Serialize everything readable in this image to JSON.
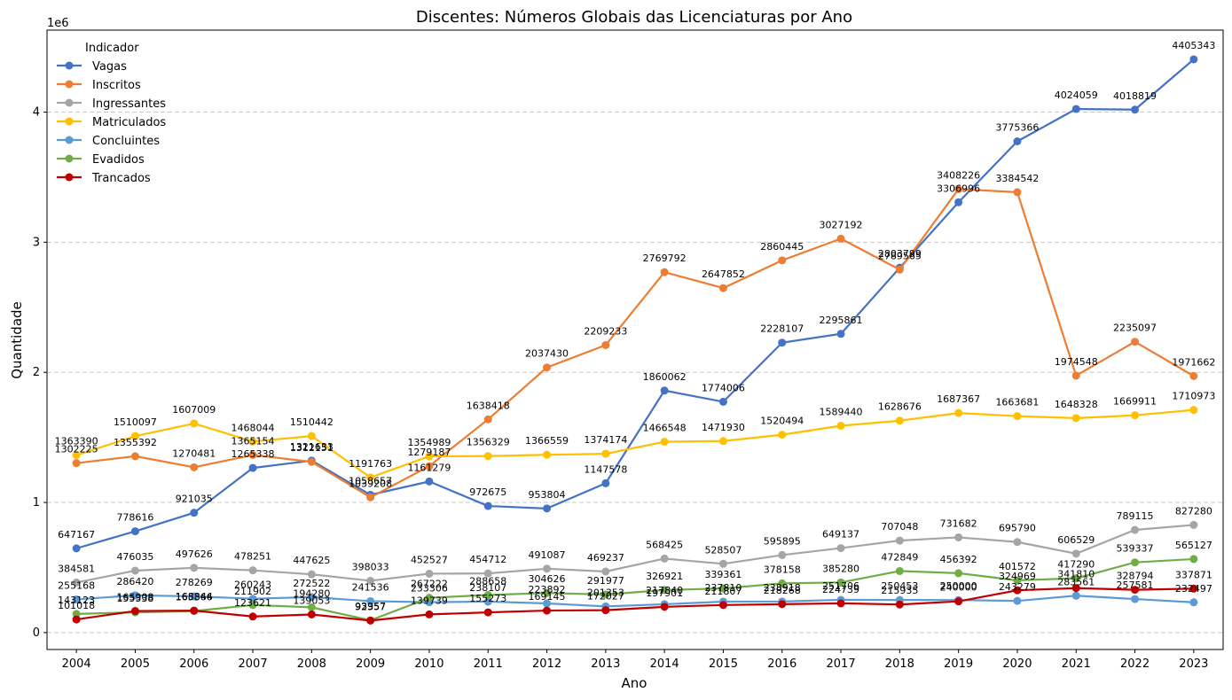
{
  "chart_data": {
    "type": "line",
    "title": "Discentes: Números Globais das Licenciaturas por Ano",
    "xlabel": "Ano",
    "ylabel": "Quantidade",
    "y_exponent_label": "1e6",
    "yticks": [
      "0",
      "1",
      "2",
      "3",
      "4"
    ],
    "ytick_values": [
      0,
      1000000,
      2000000,
      3000000,
      4000000
    ],
    "ylim": [
      -130000,
      4630000
    ],
    "grid": "y-dashed",
    "legend_title": "Indicador",
    "legend_position": "top-left",
    "x": [
      2004,
      2005,
      2006,
      2007,
      2008,
      2009,
      2010,
      2011,
      2012,
      2013,
      2014,
      2015,
      2016,
      2017,
      2018,
      2019,
      2020,
      2021,
      2022,
      2023
    ],
    "series": [
      {
        "name": "Vagas",
        "color": "#4472c4",
        "values": [
          647167,
          778616,
          921035,
          1265338,
          1321633,
          1058657,
          1161279,
          972675,
          953804,
          1147578,
          1860062,
          1774006,
          2228107,
          2295861,
          2803799,
          3306996,
          3775366,
          4024059,
          4018819,
          4405343
        ]
      },
      {
        "name": "Inscritos",
        "color": "#ed7d31",
        "values": [
          1302225,
          1355392,
          1270481,
          1365154,
          1312151,
          1039208,
          1279187,
          1638418,
          2037430,
          2209233,
          2769792,
          2647852,
          2860445,
          3027192,
          2789565,
          3408226,
          3384542,
          1974548,
          2235097,
          1971662
        ]
      },
      {
        "name": "Ingressantes",
        "color": "#a5a5a5",
        "values": [
          384581,
          476035,
          497626,
          478251,
          447625,
          398033,
          452527,
          454712,
          491087,
          469237,
          568425,
          528507,
          595895,
          649137,
          707048,
          731682,
          695790,
          606529,
          789115,
          827280
        ]
      },
      {
        "name": "Matriculados",
        "color": "#ffc000",
        "values": [
          1363390,
          1510097,
          1607009,
          1468044,
          1510442,
          1191763,
          1354989,
          1356329,
          1366559,
          1374174,
          1466548,
          1471930,
          1520494,
          1589440,
          1628676,
          1687367,
          1663681,
          1648328,
          1669911,
          1710973
        ]
      },
      {
        "name": "Concluintes",
        "color": "#5b9bd5",
        "values": [
          255168,
          286420,
          278269,
          260243,
          272522,
          241536,
          233306,
          238107,
          223892,
          201353,
          217840,
          237810,
          238918,
          251706,
          250453,
          250000,
          243279,
          283561,
          257581,
          232497
        ]
      },
      {
        "name": "Evadidos",
        "color": "#70ad47",
        "values": [
          143123,
          155338,
          165366,
          211902,
          194280,
          93957,
          267222,
          288658,
          304626,
          291977,
          326921,
          339361,
          378158,
          385280,
          472849,
          456392,
          401572,
          417290,
          539337,
          565127
        ]
      },
      {
        "name": "Trancados",
        "color": "#c00000",
        "values": [
          101018,
          165908,
          168844,
          123621,
          139053,
          92357,
          139739,
          155273,
          169145,
          172027,
          197901,
          211807,
          218268,
          224739,
          215935,
          240000,
          324969,
          341810,
          328794,
          337871
        ]
      }
    ]
  }
}
